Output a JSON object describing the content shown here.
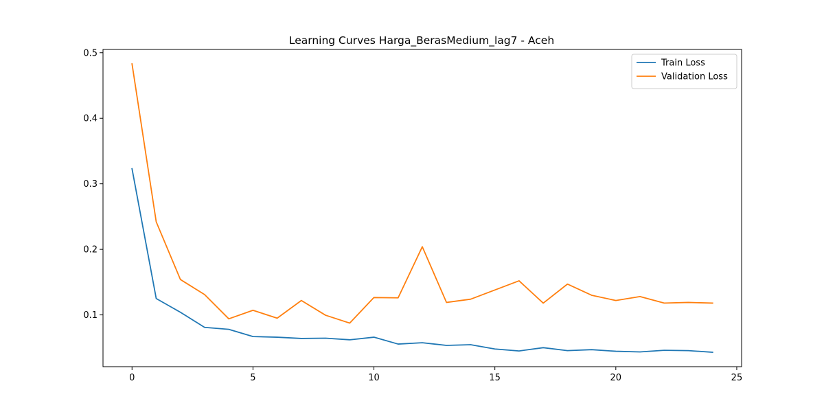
{
  "chart_data": {
    "type": "line",
    "title": "Learning Curves Harga_BerasMedium_lag7 - Aceh",
    "xlabel": "",
    "ylabel": "",
    "x": [
      0,
      1,
      2,
      3,
      4,
      5,
      6,
      7,
      8,
      9,
      10,
      11,
      12,
      13,
      14,
      15,
      16,
      17,
      18,
      19,
      20,
      21,
      22,
      23,
      24
    ],
    "xlim": [
      -1.2,
      25.2
    ],
    "ylim": [
      0.021,
      0.505
    ],
    "xticks": [
      0,
      5,
      10,
      15,
      20,
      25
    ],
    "yticks": [
      0.1,
      0.2,
      0.3,
      0.4,
      0.5
    ],
    "xtick_labels": [
      "0",
      "5",
      "10",
      "15",
      "20",
      "25"
    ],
    "ytick_labels": [
      "0.1",
      "0.2",
      "0.3",
      "0.4",
      "0.5"
    ],
    "grid": false,
    "legend_position": "upper right",
    "series": [
      {
        "name": "Train Loss",
        "color": "#1f77b4",
        "values": [
          0.323,
          0.125,
          0.104,
          0.081,
          0.078,
          0.067,
          0.066,
          0.064,
          0.0645,
          0.062,
          0.066,
          0.0555,
          0.0575,
          0.0535,
          0.0545,
          0.048,
          0.045,
          0.05,
          0.0455,
          0.047,
          0.0445,
          0.0435,
          0.046,
          0.0455,
          0.043
        ]
      },
      {
        "name": "Validation Loss",
        "color": "#ff7f0e",
        "values": [
          0.483,
          0.242,
          0.154,
          0.131,
          0.094,
          0.107,
          0.095,
          0.122,
          0.0995,
          0.0875,
          0.1265,
          0.126,
          0.204,
          0.119,
          0.124,
          0.138,
          0.152,
          0.118,
          0.147,
          0.13,
          0.122,
          0.128,
          0.118,
          0.119,
          0.118
        ]
      }
    ]
  }
}
